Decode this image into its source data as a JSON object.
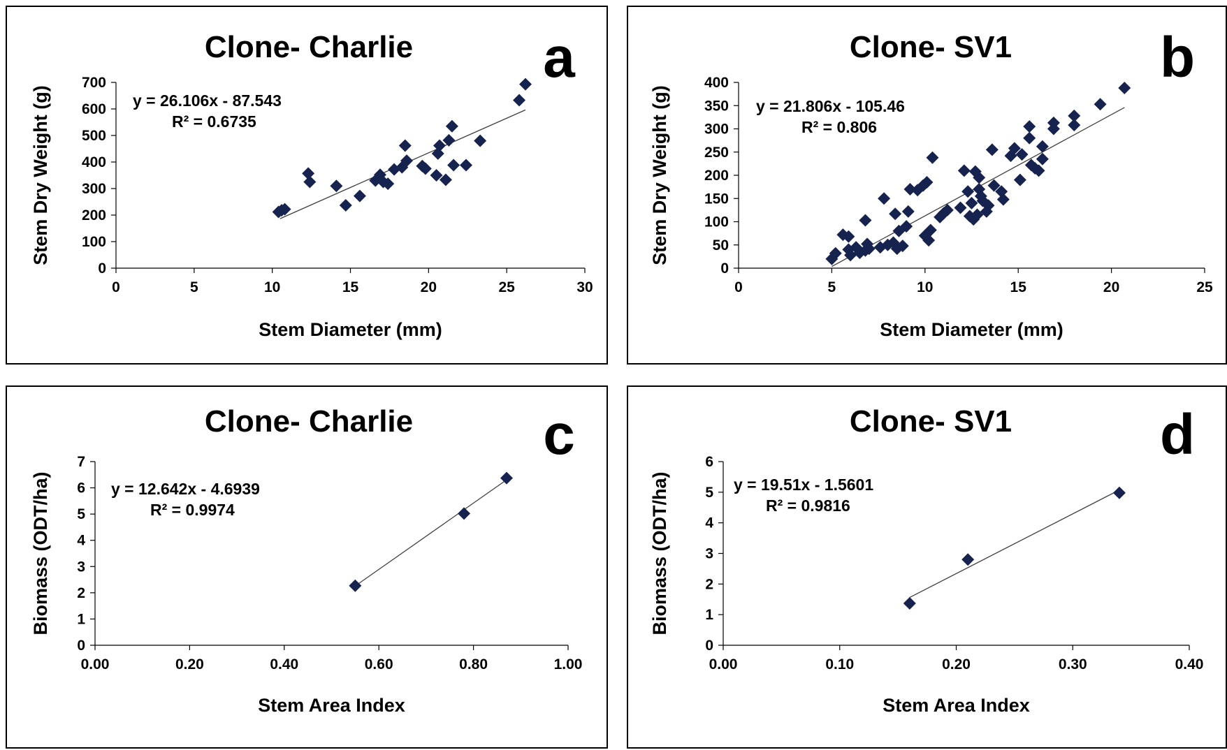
{
  "chart_data": [
    {
      "id": "a",
      "type": "scatter",
      "title": "Clone- Charlie",
      "panel_letter": "a",
      "xlabel": "Stem Diameter (mm)",
      "ylabel": "Stem Dry Weight (g)",
      "xlim": [
        0,
        30
      ],
      "ylim": [
        0,
        700
      ],
      "xticks": [
        "0",
        "5",
        "10",
        "15",
        "20",
        "25",
        "30"
      ],
      "yticks": [
        "0",
        "100",
        "200",
        "300",
        "400",
        "500",
        "600",
        "700"
      ],
      "trend": {
        "equation": "y = 26.106x - 87.543",
        "r2_label": "R² = 0.6735",
        "slope": 26.106,
        "intercept": -87.543,
        "x_range": [
          10.5,
          26.2
        ]
      },
      "points": [
        [
          10.4,
          212
        ],
        [
          10.6,
          218
        ],
        [
          10.8,
          222
        ],
        [
          12.3,
          357
        ],
        [
          12.4,
          325
        ],
        [
          14.1,
          310
        ],
        [
          14.7,
          237
        ],
        [
          15.6,
          272
        ],
        [
          16.6,
          330
        ],
        [
          16.9,
          352
        ],
        [
          17.1,
          325
        ],
        [
          17.4,
          318
        ],
        [
          17.8,
          372
        ],
        [
          18.3,
          380
        ],
        [
          18.5,
          462
        ],
        [
          18.6,
          405
        ],
        [
          19.6,
          385
        ],
        [
          19.8,
          375
        ],
        [
          20.5,
          350
        ],
        [
          20.6,
          432
        ],
        [
          20.7,
          462
        ],
        [
          21.1,
          333
        ],
        [
          21.3,
          482
        ],
        [
          21.5,
          535
        ],
        [
          21.6,
          388
        ],
        [
          22.4,
          388
        ],
        [
          23.3,
          480
        ],
        [
          25.8,
          633
        ],
        [
          26.2,
          693
        ]
      ]
    },
    {
      "id": "b",
      "type": "scatter",
      "title": "Clone- SV1",
      "panel_letter": "b",
      "xlabel": "Stem Diameter (mm)",
      "ylabel": "Stem Dry Weight (g)",
      "xlim": [
        0,
        25
      ],
      "ylim": [
        0,
        400
      ],
      "xticks": [
        "0",
        "5",
        "10",
        "15",
        "20",
        "25"
      ],
      "yticks": [
        "0",
        "50",
        "100",
        "150",
        "200",
        "250",
        "300",
        "350",
        "400"
      ],
      "trend": {
        "equation": "y = 21.806x - 105.46",
        "r2_label": "R² = 0.806",
        "slope": 21.806,
        "intercept": -105.46,
        "x_range": [
          5.0,
          20.7
        ]
      },
      "points": [
        [
          5.0,
          20
        ],
        [
          5.2,
          32
        ],
        [
          5.6,
          72
        ],
        [
          5.9,
          68
        ],
        [
          5.9,
          40
        ],
        [
          6.0,
          28
        ],
        [
          6.3,
          45
        ],
        [
          6.5,
          33
        ],
        [
          6.8,
          103
        ],
        [
          6.8,
          38
        ],
        [
          6.9,
          52
        ],
        [
          7.0,
          42
        ],
        [
          7.6,
          45
        ],
        [
          7.8,
          150
        ],
        [
          8.0,
          50
        ],
        [
          8.3,
          55
        ],
        [
          8.4,
          117
        ],
        [
          8.5,
          42
        ],
        [
          8.6,
          80
        ],
        [
          8.8,
          48
        ],
        [
          9.0,
          90
        ],
        [
          9.1,
          122
        ],
        [
          9.2,
          170
        ],
        [
          9.6,
          168
        ],
        [
          9.9,
          178
        ],
        [
          10.0,
          70
        ],
        [
          10.1,
          185
        ],
        [
          10.2,
          60
        ],
        [
          10.3,
          82
        ],
        [
          10.4,
          238
        ],
        [
          10.8,
          110
        ],
        [
          11.0,
          118
        ],
        [
          11.2,
          125
        ],
        [
          11.9,
          130
        ],
        [
          12.1,
          210
        ],
        [
          12.3,
          165
        ],
        [
          12.4,
          112
        ],
        [
          12.5,
          140
        ],
        [
          12.6,
          105
        ],
        [
          12.7,
          208
        ],
        [
          12.8,
          115
        ],
        [
          12.9,
          195
        ],
        [
          12.9,
          170
        ],
        [
          13.0,
          155
        ],
        [
          13.1,
          145
        ],
        [
          13.3,
          122
        ],
        [
          13.4,
          135
        ],
        [
          13.6,
          255
        ],
        [
          13.7,
          178
        ],
        [
          14.1,
          165
        ],
        [
          14.2,
          148
        ],
        [
          14.6,
          242
        ],
        [
          14.8,
          258
        ],
        [
          15.1,
          190
        ],
        [
          15.2,
          245
        ],
        [
          15.6,
          305
        ],
        [
          15.6,
          280
        ],
        [
          15.7,
          222
        ],
        [
          15.9,
          215
        ],
        [
          16.1,
          210
        ],
        [
          16.3,
          235
        ],
        [
          16.3,
          262
        ],
        [
          16.9,
          313
        ],
        [
          16.9,
          300
        ],
        [
          18.0,
          328
        ],
        [
          18.0,
          308
        ],
        [
          19.4,
          353
        ],
        [
          20.7,
          388
        ]
      ]
    },
    {
      "id": "c",
      "type": "scatter",
      "title": "Clone- Charlie",
      "panel_letter": "c",
      "xlabel": "Stem Area Index",
      "ylabel": "Biomass (ODT/ha)",
      "xlim": [
        0,
        1
      ],
      "ylim": [
        0,
        7
      ],
      "xticks": [
        "0.00",
        "0.20",
        "0.40",
        "0.60",
        "0.80",
        "1.00"
      ],
      "yticks": [
        "0",
        "1",
        "2",
        "3",
        "4",
        "5",
        "6",
        "7"
      ],
      "trend": {
        "equation": "y = 12.642x - 4.6939",
        "r2_label": "R² = 0.9974",
        "slope": 12.642,
        "intercept": -4.6939,
        "x_range": [
          0.55,
          0.87
        ]
      },
      "points": [
        [
          0.55,
          2.27
        ],
        [
          0.78,
          5.02
        ],
        [
          0.87,
          6.37
        ]
      ]
    },
    {
      "id": "d",
      "type": "scatter",
      "title": "Clone- SV1",
      "panel_letter": "d",
      "xlabel": "Stem Area Index",
      "ylabel": "Biomass (ODT/ha)",
      "xlim": [
        0,
        0.4
      ],
      "ylim": [
        0,
        6
      ],
      "xticks": [
        "0.00",
        "0.10",
        "0.20",
        "0.30",
        "0.40"
      ],
      "yticks": [
        "0",
        "1",
        "2",
        "3",
        "4",
        "5",
        "6"
      ],
      "trend": {
        "equation": "y = 19.51x - 1.5601",
        "r2_label": "R² = 0.9816",
        "slope": 19.51,
        "intercept": -1.5601,
        "x_range": [
          0.16,
          0.34
        ]
      },
      "points": [
        [
          0.16,
          1.37
        ],
        [
          0.21,
          2.8
        ],
        [
          0.34,
          4.98
        ]
      ]
    }
  ]
}
